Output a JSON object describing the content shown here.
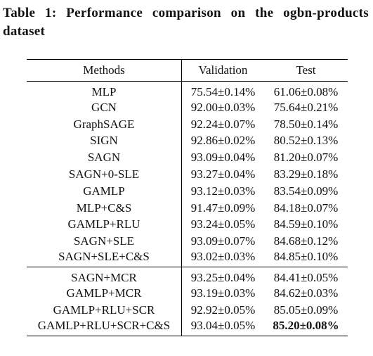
{
  "caption": "Table 1: Performance comparison on the ogbn-products dataset",
  "table": {
    "header": [
      "Methods",
      "Validation",
      "Test"
    ],
    "groups": [
      [
        [
          "MLP",
          "75.54±0.14%",
          "61.06±0.08%"
        ],
        [
          "GCN",
          "92.00±0.03%",
          "75.64±0.21%"
        ],
        [
          "GraphSAGE",
          "92.24±0.07%",
          "78.50±0.14%"
        ],
        [
          "SIGN",
          "92.86±0.02%",
          "80.52±0.13%"
        ],
        [
          "SAGN",
          "93.09±0.04%",
          "81.20±0.07%"
        ],
        [
          "SAGN+0-SLE",
          "93.27±0.04%",
          "83.29±0.18%"
        ],
        [
          "GAMLP",
          "93.12±0.03%",
          "83.54±0.09%"
        ],
        [
          "MLP+C&S",
          "91.47±0.09%",
          "84.18±0.07%"
        ],
        [
          "GAMLP+RLU",
          "93.24±0.05%",
          "84.59±0.10%"
        ],
        [
          "SAGN+SLE",
          "93.09±0.07%",
          "84.68±0.12%"
        ],
        [
          "SAGN+SLE+C&S",
          "93.02±0.03%",
          "84.85±0.10%"
        ]
      ],
      [
        [
          "SAGN+MCR",
          "93.25±0.04%",
          "84.41±0.05%"
        ],
        [
          "GAMLP+MCR",
          "93.19±0.03%",
          "84.62±0.03%"
        ],
        [
          "GAMLP+RLU+SCR",
          "92.92±0.05%",
          "85.05±0.09%"
        ],
        [
          "GAMLP+RLU+SCR+C&S",
          "93.04±0.05%",
          "85.20±0.08%"
        ]
      ]
    ]
  }
}
